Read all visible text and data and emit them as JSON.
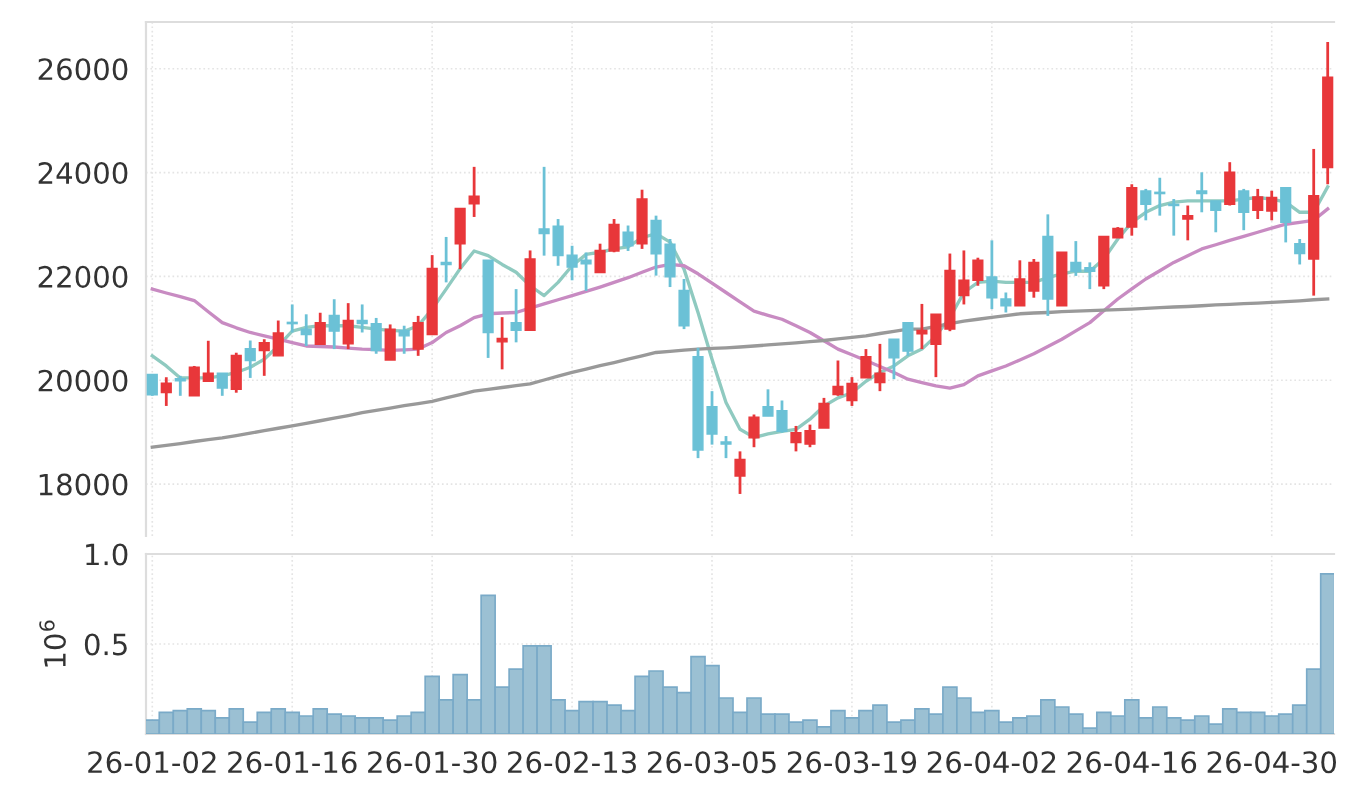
{
  "chart_data": [
    {
      "type": "candlestick",
      "categories": [
        null,
        null,
        null,
        null,
        null,
        null,
        null,
        null,
        null,
        null,
        null,
        null,
        null,
        null,
        null,
        null,
        null,
        null,
        null,
        null,
        null,
        null,
        null,
        null,
        null,
        null,
        null,
        null,
        null,
        null,
        null,
        null,
        null,
        null,
        null,
        null,
        null,
        null,
        null,
        null,
        null,
        null,
        null,
        null,
        null,
        null,
        null,
        null,
        null,
        null,
        null,
        null,
        null,
        null,
        null,
        null,
        null,
        null,
        null,
        null,
        null,
        null,
        null,
        null,
        null,
        null,
        null,
        null,
        null,
        null,
        null,
        null,
        null,
        null,
        null,
        null,
        null,
        null,
        null,
        null,
        null,
        null,
        null,
        null,
        null
      ],
      "ohlc": [
        [
          20110,
          20120,
          19700,
          19720
        ],
        [
          19762,
          20058,
          19505,
          19942
        ],
        [
          20030,
          20085,
          19700,
          19990
        ],
        [
          19700,
          20275,
          19700,
          20250
        ],
        [
          19980,
          20760,
          19980,
          20135
        ],
        [
          20135,
          20135,
          19700,
          19850
        ],
        [
          19825,
          20530,
          19760,
          20480
        ],
        [
          20610,
          20765,
          20045,
          20380
        ],
        [
          20570,
          20790,
          20085,
          20725
        ],
        [
          20470,
          21150,
          20470,
          20910
        ],
        [
          21115,
          21460,
          20920,
          21090
        ],
        [
          20985,
          21270,
          20660,
          20880
        ],
        [
          20690,
          21300,
          20690,
          21110
        ],
        [
          21250,
          21560,
          20600,
          20945
        ],
        [
          20700,
          21485,
          20600,
          21150
        ],
        [
          21150,
          21460,
          20920,
          21090
        ],
        [
          21090,
          21200,
          20510,
          20570
        ],
        [
          20390,
          21075,
          20390,
          20985
        ],
        [
          20960,
          21050,
          20510,
          20855
        ],
        [
          20600,
          21240,
          20470,
          21110
        ],
        [
          20880,
          22410,
          20880,
          22155
        ],
        [
          22270,
          22760,
          21885,
          22230
        ],
        [
          22630,
          23310,
          22140,
          23310
        ],
        [
          23400,
          24110,
          23145,
          23545
        ],
        [
          22310,
          22310,
          20430,
          20920
        ],
        [
          20740,
          21215,
          20210,
          20805
        ],
        [
          21110,
          21755,
          20730,
          20960
        ],
        [
          20960,
          22500,
          20960,
          22335
        ],
        [
          22915,
          24110,
          22400,
          22825
        ],
        [
          22965,
          23105,
          22205,
          22400
        ],
        [
          22410,
          22590,
          21925,
          22180
        ],
        [
          22310,
          22460,
          21720,
          22245
        ],
        [
          22075,
          22630,
          22075,
          22500
        ],
        [
          22490,
          23105,
          22465,
          23000
        ],
        [
          22850,
          22980,
          22490,
          22590
        ],
        [
          22630,
          23670,
          22530,
          23490
        ],
        [
          23080,
          23170,
          22015,
          22435
        ],
        [
          22620,
          22720,
          21795,
          21990
        ],
        [
          21730,
          21950,
          20985,
          21050
        ],
        [
          20455,
          20625,
          18500,
          18655
        ],
        [
          19490,
          19790,
          18760,
          18965
        ],
        [
          18810,
          18925,
          18500,
          18770
        ],
        [
          18155,
          18630,
          17810,
          18475
        ],
        [
          18890,
          19340,
          18710,
          19290
        ],
        [
          19490,
          19825,
          19310,
          19310
        ],
        [
          19415,
          19610,
          18990,
          19015
        ],
        [
          18800,
          19120,
          18630,
          18990
        ],
        [
          18770,
          19145,
          18710,
          19030
        ],
        [
          19080,
          19660,
          19080,
          19555
        ],
        [
          19725,
          20380,
          19700,
          19880
        ],
        [
          19610,
          20060,
          19505,
          19940
        ],
        [
          20045,
          20600,
          20045,
          20455
        ],
        [
          19955,
          20700,
          19790,
          20135
        ],
        [
          20790,
          20790,
          20020,
          20430
        ],
        [
          21110,
          21110,
          20470,
          20560
        ],
        [
          20895,
          21470,
          20600,
          20960
        ],
        [
          20690,
          21270,
          20060,
          21270
        ],
        [
          20985,
          22440,
          20945,
          22115
        ],
        [
          21630,
          22500,
          21460,
          21925
        ],
        [
          21925,
          22360,
          21820,
          22310
        ],
        [
          21990,
          22695,
          21370,
          21590
        ],
        [
          21565,
          21690,
          21305,
          21435
        ],
        [
          21435,
          22310,
          21435,
          21950
        ],
        [
          21720,
          22335,
          21590,
          22270
        ],
        [
          22770,
          23195,
          21240,
          21565
        ],
        [
          21435,
          22465,
          21435,
          22465
        ],
        [
          22270,
          22680,
          22010,
          22100
        ],
        [
          22170,
          22270,
          21755,
          22100
        ],
        [
          21820,
          22770,
          21755,
          22770
        ],
        [
          22745,
          22950,
          22745,
          22925
        ],
        [
          22950,
          23775,
          22785,
          23710
        ],
        [
          23645,
          23685,
          23080,
          23390
        ],
        [
          23620,
          23900,
          23170,
          23595
        ],
        [
          23390,
          23490,
          22785,
          23365
        ],
        [
          23105,
          23365,
          22695,
          23170
        ],
        [
          23645,
          24005,
          23235,
          23595
        ],
        [
          23455,
          23455,
          22850,
          23275
        ],
        [
          23390,
          24200,
          23365,
          24005
        ],
        [
          23645,
          23685,
          22890,
          23235
        ],
        [
          23275,
          23685,
          23105,
          23530
        ],
        [
          23260,
          23650,
          23080,
          23520
        ],
        [
          23710,
          23710,
          22655,
          23040
        ],
        [
          22630,
          22720,
          22230,
          22440
        ],
        [
          22335,
          24455,
          21630,
          23555
        ],
        [
          24095,
          26515,
          23775,
          25835
        ]
      ],
      "colors": [
        "#6bc1d6",
        "#e8373a",
        "#6bc1d6",
        "#e8373a",
        "#e8373a",
        "#6bc1d6",
        "#e8373a",
        "#6bc1d6",
        "#e8373a",
        "#e8373a",
        "#6bc1d6",
        "#6bc1d6",
        "#e8373a",
        "#6bc1d6",
        "#e8373a",
        "#6bc1d6",
        "#6bc1d6",
        "#e8373a",
        "#6bc1d6",
        "#e8373a",
        "#e8373a",
        "#6bc1d6",
        "#e8373a",
        "#e8373a",
        "#6bc1d6",
        "#e8373a",
        "#6bc1d6",
        "#e8373a",
        "#6bc1d6",
        "#6bc1d6",
        "#6bc1d6",
        "#6bc1d6",
        "#e8373a",
        "#e8373a",
        "#6bc1d6",
        "#e8373a",
        "#6bc1d6",
        "#6bc1d6",
        "#6bc1d6",
        "#6bc1d6",
        "#6bc1d6",
        "#6bc1d6",
        "#e8373a",
        "#e8373a",
        "#6bc1d6",
        "#6bc1d6",
        "#e8373a",
        "#e8373a",
        "#e8373a",
        "#e8373a",
        "#e8373a",
        "#e8373a",
        "#e8373a",
        "#6bc1d6",
        "#6bc1d6",
        "#e8373a",
        "#e8373a",
        "#e8373a",
        "#e8373a",
        "#e8373a",
        "#6bc1d6",
        "#6bc1d6",
        "#e8373a",
        "#e8373a",
        "#6bc1d6",
        "#e8373a",
        "#6bc1d6",
        "#6bc1d6",
        "#e8373a",
        "#e8373a",
        "#e8373a",
        "#6bc1d6",
        "#6bc1d6",
        "#6bc1d6",
        "#e8373a",
        "#6bc1d6",
        "#6bc1d6",
        "#e8373a",
        "#6bc1d6",
        "#e8373a",
        "#e8373a",
        "#6bc1d6",
        "#6bc1d6",
        "#e8373a",
        "#e8373a"
      ],
      "series": [
        {
          "type": "line",
          "color": "#8fcac0",
          "values": [
            20470,
            20275,
            20045,
            20045,
            20045,
            20085,
            20150,
            20250,
            20405,
            20660,
            20945,
            21020,
            21050,
            21050,
            21050,
            21020,
            20985,
            20960,
            20945,
            21050,
            21370,
            21755,
            22150,
            22490,
            22400,
            22230,
            22080,
            21820,
            21630,
            21885,
            22205,
            22425,
            22465,
            22530,
            22570,
            22745,
            22825,
            22660,
            22140,
            21305,
            20405,
            19570,
            19055,
            18900,
            18965,
            19015,
            19055,
            19250,
            19505,
            19660,
            19760,
            19980,
            20150,
            20275,
            20470,
            20600,
            20855,
            21205,
            21690,
            21885,
            21910,
            21885,
            21885,
            21885,
            21975,
            22050,
            22100,
            22100,
            22335,
            22720,
            23040,
            23235,
            23365,
            23430,
            23455,
            23455,
            23455,
            23455,
            23490,
            23520,
            23490,
            23430,
            23235,
            23235,
            23725
          ]
        },
        {
          "type": "line",
          "color": "#c88bc2",
          "values": [
            21755,
            21680,
            21610,
            21535,
            21320,
            21110,
            21010,
            20920,
            20855,
            20790,
            20725,
            20660,
            20650,
            20640,
            20620,
            20600,
            20590,
            20575,
            20585,
            20600,
            20725,
            20920,
            21050,
            21205,
            21280,
            21295,
            21305,
            21390,
            21470,
            21550,
            21630,
            21710,
            21795,
            21885,
            21975,
            22080,
            22180,
            22230,
            22205,
            22050,
            21870,
            21690,
            21510,
            21330,
            21250,
            21175,
            21050,
            20920,
            20760,
            20600,
            20490,
            20380,
            20265,
            20150,
            20020,
            19955,
            19890,
            19850,
            19915,
            20085,
            20180,
            20275,
            20390,
            20510,
            20650,
            20790,
            20950,
            21110,
            21340,
            21565,
            21760,
            21950,
            22110,
            22270,
            22400,
            22530,
            22610,
            22695,
            22770,
            22850,
            22930,
            23005,
            23040,
            23080,
            23300
          ]
        },
        {
          "type": "line",
          "color": "#999999",
          "values": [
            18710,
            18745,
            18780,
            18820,
            18855,
            18890,
            18935,
            18980,
            19030,
            19075,
            19120,
            19170,
            19220,
            19270,
            19320,
            19375,
            19420,
            19465,
            19510,
            19550,
            19595,
            19660,
            19725,
            19790,
            19825,
            19860,
            19895,
            19930,
            20005,
            20080,
            20150,
            20215,
            20280,
            20340,
            20405,
            20470,
            20535,
            20555,
            20580,
            20600,
            20615,
            20625,
            20640,
            20660,
            20680,
            20700,
            20720,
            20745,
            20765,
            20795,
            20825,
            20855,
            20900,
            20940,
            20985,
            20985,
            21035,
            21090,
            21140,
            21175,
            21210,
            21245,
            21280,
            21295,
            21305,
            21320,
            21330,
            21340,
            21350,
            21360,
            21370,
            21385,
            21400,
            21410,
            21420,
            21435,
            21450,
            21460,
            21475,
            21485,
            21500,
            21515,
            21530,
            21550,
            21565
          ]
        }
      ],
      "ylim": [
        17000,
        26900
      ],
      "yticks": [
        18000,
        20000,
        22000,
        24000,
        26000
      ],
      "grid": true,
      "tick_labels": "y"
    },
    {
      "type": "bar",
      "ylabel": "10$^{6}$",
      "categories": [
        "26-01-02",
        null,
        null,
        null,
        null,
        null,
        null,
        null,
        null,
        null,
        "26-01-16",
        null,
        null,
        null,
        null,
        null,
        null,
        null,
        null,
        null,
        "26-01-30",
        null,
        null,
        null,
        null,
        null,
        null,
        null,
        null,
        null,
        "26-02-13",
        null,
        null,
        null,
        null,
        null,
        null,
        null,
        null,
        null,
        "26-03-05",
        null,
        null,
        null,
        null,
        null,
        null,
        null,
        null,
        null,
        "26-03-19",
        null,
        null,
        null,
        null,
        null,
        null,
        null,
        null,
        null,
        "26-04-02",
        null,
        null,
        null,
        null,
        null,
        null,
        null,
        null,
        null,
        "26-04-16",
        null,
        null,
        null,
        null,
        null,
        null,
        null,
        null,
        null,
        "26-04-30",
        null,
        null,
        null,
        null
      ],
      "color": "#9bc0d3",
      "values": [
        0.077,
        0.12,
        0.13,
        0.14,
        0.13,
        0.09,
        0.14,
        0.066,
        0.12,
        0.14,
        0.12,
        0.1,
        0.14,
        0.11,
        0.1,
        0.09,
        0.09,
        0.077,
        0.1,
        0.12,
        0.32,
        0.19,
        0.33,
        0.19,
        0.77,
        0.26,
        0.36,
        0.49,
        0.49,
        0.19,
        0.13,
        0.18,
        0.18,
        0.16,
        0.13,
        0.32,
        0.35,
        0.26,
        0.23,
        0.43,
        0.38,
        0.2,
        0.12,
        0.2,
        0.11,
        0.11,
        0.066,
        0.077,
        0.04,
        0.13,
        0.09,
        0.13,
        0.16,
        0.066,
        0.077,
        0.14,
        0.11,
        0.26,
        0.2,
        0.12,
        0.13,
        0.066,
        0.09,
        0.1,
        0.19,
        0.15,
        0.11,
        0.033,
        0.12,
        0.1,
        0.19,
        0.09,
        0.15,
        0.09,
        0.077,
        0.1,
        0.055,
        0.14,
        0.12,
        0.12,
        0.1,
        0.11,
        0.16,
        0.36,
        0.89
      ],
      "ylim": [
        0,
        1.0
      ],
      "yticks": [
        0.5,
        {
          "value": 1.0,
          "label": "1.0"
        }
      ],
      "grid": true
    }
  ]
}
